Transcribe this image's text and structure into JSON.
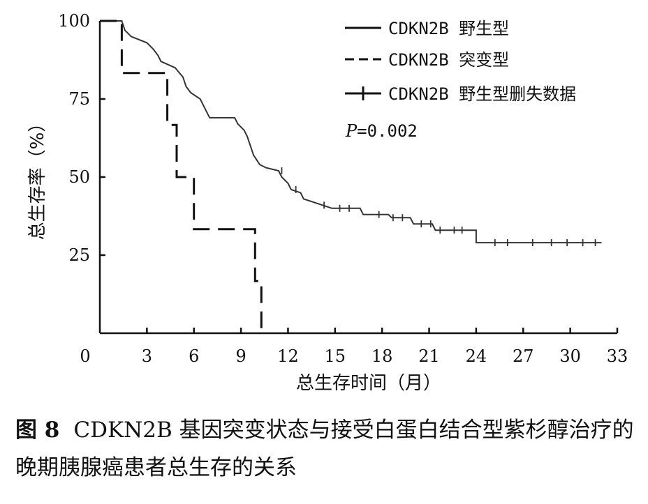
{
  "chart_data": {
    "type": "line",
    "subtype": "kaplan-meier",
    "xlabel": "总生存时间（月）",
    "ylabel": "总生存率（%）",
    "xlim": [
      0,
      33
    ],
    "ylim": [
      0,
      100
    ],
    "x_ticks": [
      "0",
      "3",
      "6",
      "9",
      "12",
      "15",
      "18",
      "21",
      "24",
      "27",
      "30",
      "33"
    ],
    "y_ticks": [
      "25",
      "50",
      "75",
      "100"
    ],
    "grid": false,
    "legend_position": "top-right",
    "legend": [
      {
        "label": "CDKN2B 野生型",
        "style": "solid"
      },
      {
        "label": "CDKN2B 突变型",
        "style": "dashed"
      },
      {
        "label": "CDKN2B 野生型删失数据",
        "style": "censor"
      }
    ],
    "p_value": {
      "italic": "P",
      "rest": "=0.002"
    },
    "series": [
      {
        "style": "solid",
        "points": [
          [
            0,
            100
          ],
          [
            1.4,
            100
          ],
          [
            1.6,
            97
          ],
          [
            2.0,
            95
          ],
          [
            3.0,
            93
          ],
          [
            3.4,
            91
          ],
          [
            3.7,
            89
          ],
          [
            3.9,
            87
          ],
          [
            4.8,
            85
          ],
          [
            5.3,
            82
          ],
          [
            5.5,
            79
          ],
          [
            5.8,
            77
          ],
          [
            6.4,
            75
          ],
          [
            6.7,
            72
          ],
          [
            7.0,
            69
          ],
          [
            8.6,
            69
          ],
          [
            8.8,
            67
          ],
          [
            9.2,
            65
          ],
          [
            9.4,
            63
          ],
          [
            9.6,
            60
          ],
          [
            9.8,
            57
          ],
          [
            10.2,
            54
          ],
          [
            10.6,
            53
          ],
          [
            11.4,
            52
          ],
          [
            11.6,
            50
          ],
          [
            12.0,
            48
          ],
          [
            12.2,
            46
          ],
          [
            12.8,
            45
          ],
          [
            13.0,
            43
          ],
          [
            13.6,
            42
          ],
          [
            14.2,
            41
          ],
          [
            14.8,
            40
          ],
          [
            16.6,
            40
          ],
          [
            16.8,
            38
          ],
          [
            18.4,
            38
          ],
          [
            18.6,
            37
          ],
          [
            19.8,
            37
          ],
          [
            20.0,
            35
          ],
          [
            21.2,
            35
          ],
          [
            21.4,
            33
          ],
          [
            24.0,
            33
          ],
          [
            24.0,
            29
          ],
          [
            32,
            29
          ]
        ],
        "censors": [
          [
            11.6,
            52
          ],
          [
            12.5,
            46
          ],
          [
            14.3,
            41
          ],
          [
            15.3,
            40
          ],
          [
            15.9,
            40
          ],
          [
            17.8,
            38
          ],
          [
            18.7,
            37
          ],
          [
            19.3,
            37
          ],
          [
            20.5,
            35
          ],
          [
            21.1,
            35
          ],
          [
            21.7,
            33
          ],
          [
            22.6,
            33
          ],
          [
            23.1,
            33
          ],
          [
            25.2,
            29
          ],
          [
            26.0,
            29
          ],
          [
            27.6,
            29
          ],
          [
            28.8,
            29
          ],
          [
            29.8,
            29
          ],
          [
            30.8,
            29
          ],
          [
            31.6,
            29
          ]
        ]
      },
      {
        "style": "dashed",
        "points": [
          [
            0,
            100
          ],
          [
            1.4,
            100
          ],
          [
            1.4,
            83.3
          ],
          [
            4.3,
            83.3
          ],
          [
            4.3,
            66.7
          ],
          [
            4.9,
            66.7
          ],
          [
            4.9,
            50
          ],
          [
            6.0,
            50
          ],
          [
            6.0,
            33.3
          ],
          [
            9.9,
            33.3
          ],
          [
            9.9,
            16.7
          ],
          [
            10.3,
            16.7
          ],
          [
            10.3,
            0
          ]
        ]
      }
    ]
  },
  "caption": {
    "figure_number": "图 8",
    "text": "CDKN2B 基因突变状态与接受白蛋白结合型紫杉醇治疗的晚期胰腺癌患者总生存的关系"
  }
}
